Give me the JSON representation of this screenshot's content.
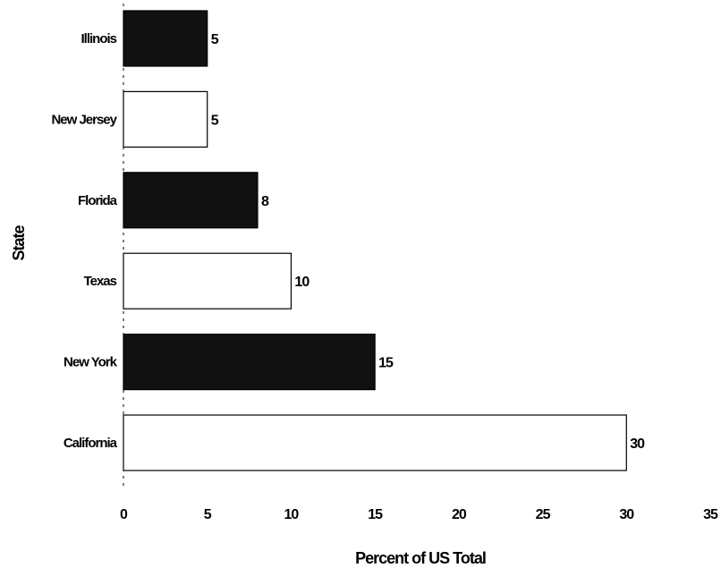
{
  "chart_data": {
    "type": "bar",
    "orientation": "horizontal",
    "categories": [
      "Illinois",
      "New Jersey",
      "Florida",
      "Texas",
      "New York",
      "California"
    ],
    "values": [
      5,
      5,
      8,
      10,
      15,
      30
    ],
    "bar_fills": [
      "dark",
      "light",
      "dark",
      "light",
      "dark",
      "light"
    ],
    "data_labels": [
      "5",
      "5",
      "8",
      "10",
      "15",
      "30"
    ],
    "xlabel": "Percent of US Total",
    "ylabel": "State",
    "xlim": [
      0,
      35
    ],
    "xticks": [
      0,
      5,
      10,
      15,
      20,
      25,
      30,
      35
    ],
    "xtick_labels": [
      "0",
      "5",
      "10",
      "15",
      "20",
      "25",
      "30",
      "35"
    ],
    "grid": false,
    "legend": "none",
    "colors": {
      "dark": "#111111",
      "light": "#ffffff",
      "outline": "#000000"
    }
  }
}
